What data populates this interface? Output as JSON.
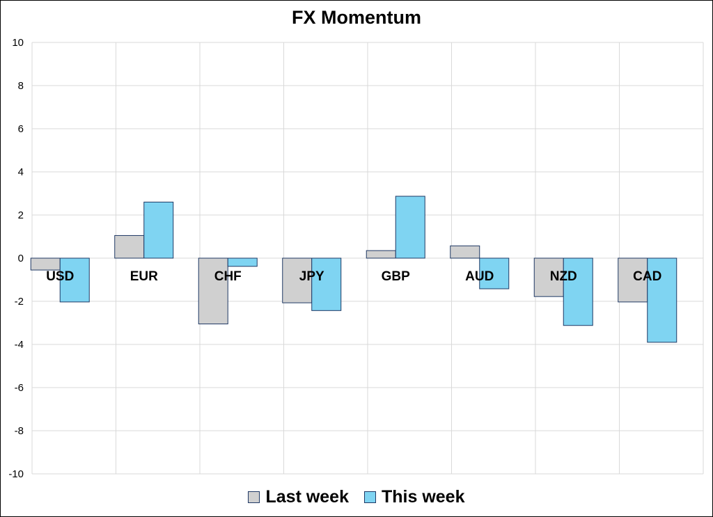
{
  "chart_data": {
    "type": "bar",
    "title": "FX Momentum",
    "categories": [
      "USD",
      "EUR",
      "CHF",
      "JPY",
      "GBP",
      "AUD",
      "NZD",
      "CAD"
    ],
    "series": [
      {
        "name": "Last week",
        "color": "#d0d0d0",
        "values": [
          -0.55,
          1.05,
          -3.05,
          -2.07,
          0.35,
          0.57,
          -1.78,
          -2.03
        ]
      },
      {
        "name": "This week",
        "color": "#7fd4f2",
        "values": [
          -2.03,
          2.6,
          -0.38,
          -2.43,
          2.87,
          -1.42,
          -3.12,
          -3.9
        ]
      }
    ],
    "ylim": [
      -10,
      10
    ],
    "yticks": [
      10,
      8,
      6,
      4,
      2,
      0,
      -2,
      -4,
      -6,
      -8,
      -10
    ],
    "xlabel": "",
    "ylabel": "",
    "grid": true,
    "legend_position": "bottom",
    "bar_outline_color": "#1f3864"
  }
}
